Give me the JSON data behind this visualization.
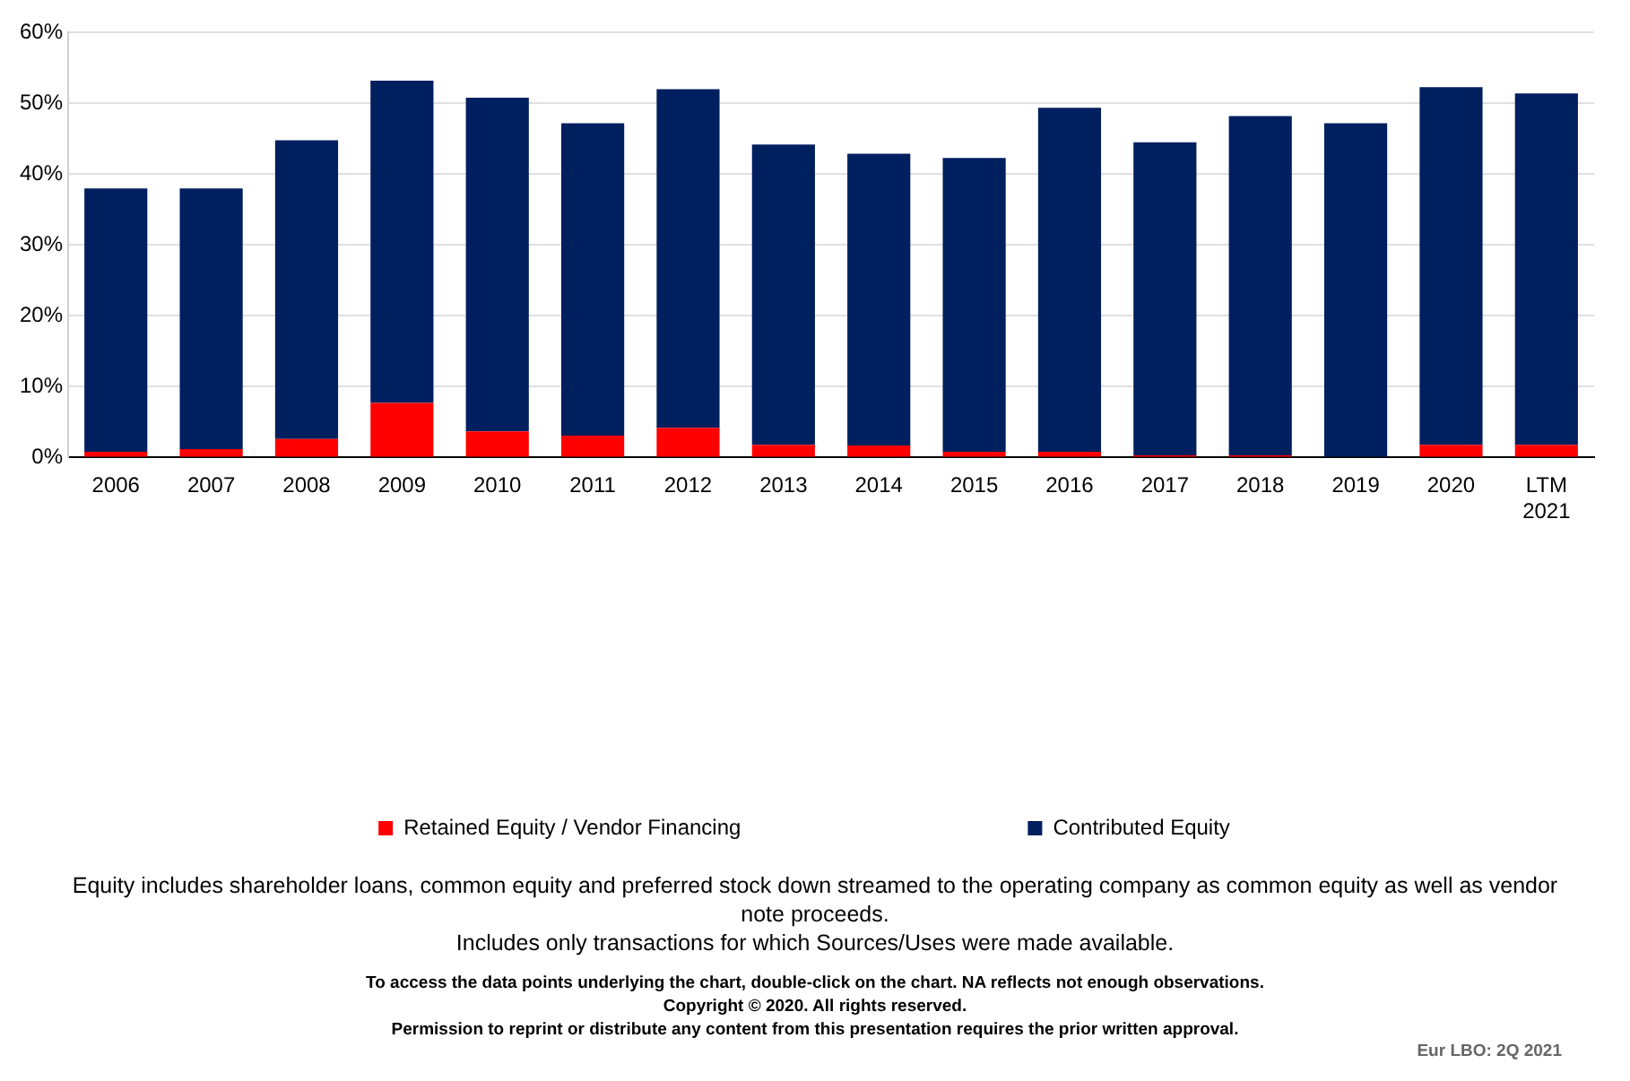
{
  "chart_data": {
    "type": "bar",
    "stacked": true,
    "categories": [
      "2006",
      "2007",
      "2008",
      "2009",
      "2010",
      "2011",
      "2012",
      "2013",
      "2014",
      "2015",
      "2016",
      "2017",
      "2018",
      "2019",
      "2020",
      "LTM 2021"
    ],
    "series": [
      {
        "name": "Retained Equity / Vendor Financing",
        "color": "#ff0000",
        "values": [
          0.8,
          1.2,
          2.6,
          7.7,
          3.7,
          3.1,
          4.2,
          1.8,
          1.7,
          0.8,
          0.8,
          0.3,
          0.3,
          0,
          1.8,
          1.8
        ]
      },
      {
        "name": "Contributed Equity",
        "color": "#001f5f",
        "values": [
          37.2,
          36.8,
          42.2,
          45.5,
          47.1,
          44.1,
          47.8,
          42.4,
          41.2,
          41.5,
          48.6,
          44.2,
          47.9,
          47.2,
          50.5,
          49.6
        ]
      }
    ],
    "ylim": [
      0,
      60
    ],
    "yticks": [
      {
        "value": 0,
        "label": "0%"
      },
      {
        "value": 10,
        "label": "10%"
      },
      {
        "value": 20,
        "label": "20%"
      },
      {
        "value": 30,
        "label": "30%"
      },
      {
        "value": 40,
        "label": "40%"
      },
      {
        "value": 50,
        "label": "50%"
      },
      {
        "value": 60,
        "label": "60%"
      }
    ],
    "grid": "y",
    "legend": "bottom",
    "annotations": [
      "Equity includes shareholder loans, common equity and preferred stock down streamed to the operating company as common equity as well as vendor note proceeds.",
      "Includes only transactions for which Sources/Uses were made available.",
      "To access the data points underlying the chart, double-click on the chart. NA reflects not enough observations.",
      "Copyright © 2020. All rights reserved.",
      "Permission to reprint or distribute any content from this presentation requires the prior written approval.",
      "Eur LBO: 2Q 2021"
    ]
  }
}
